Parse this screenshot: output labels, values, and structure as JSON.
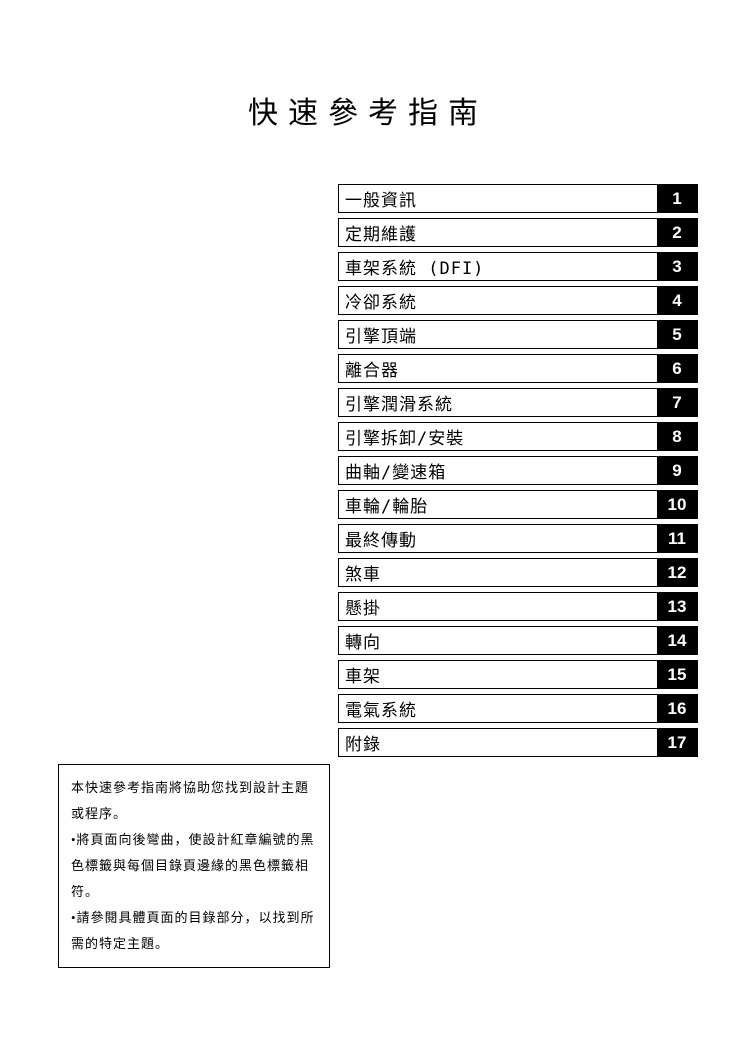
{
  "title": "快速參考指南",
  "toc": {
    "items": [
      {
        "label": "一般資訊",
        "num": "1"
      },
      {
        "label": "定期維護",
        "num": "2"
      },
      {
        "label": "車架系統 (DFI)",
        "num": "3"
      },
      {
        "label": "冷卻系統",
        "num": "4"
      },
      {
        "label": "引擎頂端",
        "num": "5"
      },
      {
        "label": "離合器",
        "num": "6"
      },
      {
        "label": "引擎潤滑系統",
        "num": "7"
      },
      {
        "label": "引擎拆卸/安裝",
        "num": "8"
      },
      {
        "label": "曲軸/變速箱",
        "num": "9"
      },
      {
        "label": "車輪/輪胎",
        "num": "10"
      },
      {
        "label": "最終傳動",
        "num": "11"
      },
      {
        "label": "煞車",
        "num": "12"
      },
      {
        "label": "懸掛",
        "num": "13"
      },
      {
        "label": "轉向",
        "num": "14"
      },
      {
        "label": "車架",
        "num": "15"
      },
      {
        "label": "電氣系統",
        "num": "16"
      },
      {
        "label": "附錄",
        "num": "17"
      }
    ]
  },
  "note": {
    "lines": [
      "本快速參考指南將協助您找到設計主題或程序。",
      "•將頁面向後彎曲，使設計紅章編號的黑色標籤與每個目錄頁邊緣的黑色標籤相符。",
      "•請參閱具體頁面的目錄部分，以找到所需的特定主題。"
    ]
  },
  "style": {
    "page_bg": "#ffffff",
    "text_color": "#000000",
    "tab_bg": "#000000",
    "tab_text": "#ffffff",
    "border_color": "#000000",
    "title_fontsize": 30,
    "toc_fontsize": 17,
    "note_fontsize": 13
  }
}
